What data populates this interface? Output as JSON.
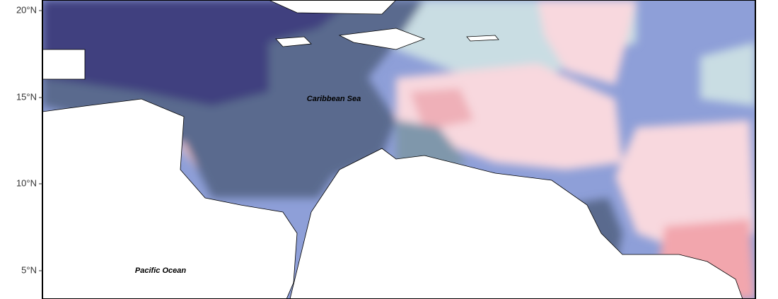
{
  "lat_labels": [
    "20°N",
    "15°N",
    "10°N",
    "5°N"
  ],
  "place_labels": [
    "Caribbean Sea",
    "Pacific Ocean"
  ]
}
